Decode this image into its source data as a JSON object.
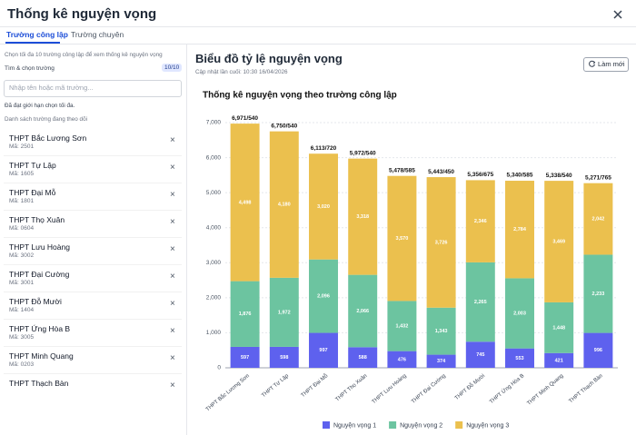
{
  "header": {
    "title": "Thống kê nguyện vọng"
  },
  "tabs": [
    "Trường công lập",
    "Trường chuyên"
  ],
  "sidebar": {
    "hint": "Chọn tối đa 10 trường công lập để xem thống kê nguyện vọng",
    "search_label": "Tìm & chọn trường",
    "count": "10/10",
    "placeholder": "Nhập tên hoặc mã trường...",
    "limit_note": "Đã đạt giới hạn chọn tối đa.",
    "list_title": "Danh sách trường đang theo dõi",
    "schools": [
      {
        "name": "THPT Bắc Lương Sơn",
        "code": "Mã: 2501"
      },
      {
        "name": "THPT Tự Lập",
        "code": "Mã: 1605"
      },
      {
        "name": "THPT Đại Mỗ",
        "code": "Mã: 1801"
      },
      {
        "name": "THPT Thọ Xuân",
        "code": "Mã: 0604"
      },
      {
        "name": "THPT Lưu Hoàng",
        "code": "Mã: 3002"
      },
      {
        "name": "THPT Đại Cường",
        "code": "Mã: 3001"
      },
      {
        "name": "THPT Đỗ Mười",
        "code": "Mã: 1404"
      },
      {
        "name": "THPT Ứng Hòa B",
        "code": "Mã: 3005"
      },
      {
        "name": "THPT Minh Quang",
        "code": "Mã: 0203"
      },
      {
        "name": "THPT Thạch Bàn"
      }
    ]
  },
  "panel": {
    "title": "Biểu đồ tỷ lệ nguyện vọng",
    "updated": "Cập nhật lần cuối: 10:30 16/04/2026",
    "refresh": "Làm mới"
  },
  "chart_data": {
    "type": "stacked-bar",
    "title": "Thống kê nguyện vọng theo trường công lập",
    "categories": [
      "THPT Bắc Lương Sơn",
      "THPT Tự Lập",
      "THPT Đại Mỗ",
      "THPT Thọ Xuân",
      "THPT Lưu Hoàng",
      "THPT Đại Cường",
      "THPT Đỗ Mười",
      "THPT Ứng Hòa B",
      "THPT Minh Quang",
      "THPT Thạch Bàn"
    ],
    "series": [
      {
        "name": "Nguyện vọng 1",
        "color": "#5e61ee",
        "values": [
          597,
          598,
          997,
          588,
          476,
          374,
          745,
          553,
          421,
          996
        ]
      },
      {
        "name": "Nguyện vọng 2",
        "color": "#6cc4a0",
        "values": [
          1876,
          1972,
          2096,
          2066,
          1432,
          1343,
          2265,
          2003,
          1448,
          2233
        ],
        "value_labels": [
          "1,876",
          "1,972",
          "2,096",
          "2,066",
          "1,432",
          "1,343",
          "2,265",
          "2,003",
          "1,448",
          "2,233"
        ]
      },
      {
        "name": "Nguyện vọng 3",
        "color": "#ebc04e",
        "values": [
          4498,
          4180,
          3020,
          3318,
          3570,
          3726,
          2346,
          2784,
          3469,
          2042
        ],
        "value_labels": [
          "4,498",
          "4,180",
          "3,020",
          "3,318",
          "3,570",
          "3,726",
          "2,346",
          "2,784",
          "3,469",
          "2,042"
        ]
      }
    ],
    "bar_labels": [
      "6,971/540",
      "6,750/540",
      "6,113/720",
      "5,972/540",
      "5,478/585",
      "5,443/450",
      "5,356/675",
      "5,340/585",
      "5,338/540",
      "5,271/765"
    ],
    "ylim": [
      0,
      7000
    ],
    "yticks": [
      0,
      {
        "value": 1000,
        "label": "1,000"
      },
      {
        "value": 2000,
        "label": "2,000"
      },
      {
        "value": 3000,
        "label": "3,000"
      },
      {
        "value": 4000,
        "label": "4,000"
      },
      {
        "value": 5000,
        "label": "5,000"
      },
      {
        "value": 6000,
        "label": "6,000"
      },
      {
        "value": 7000,
        "label": "7,000"
      }
    ],
    "grid": true,
    "legend": "bottom"
  }
}
